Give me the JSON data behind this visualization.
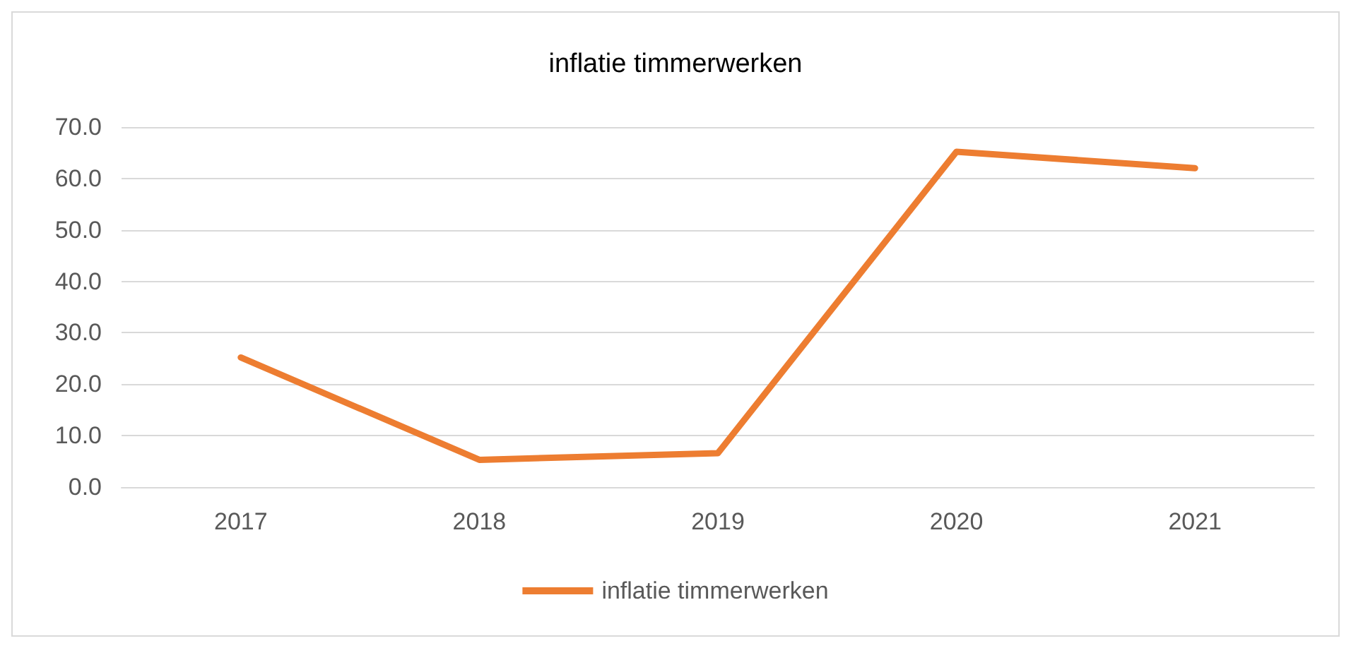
{
  "chart_data": {
    "type": "line",
    "title": "inflatie timmerwerken",
    "categories": [
      "2017",
      "2018",
      "2019",
      "2020",
      "2021"
    ],
    "series": [
      {
        "name": "inflatie timmerwerken",
        "color": "#ed7d31",
        "values": [
          25.2,
          5.3,
          6.6,
          65.2,
          62.0
        ]
      }
    ],
    "ylim": [
      0,
      70
    ],
    "yticks": [
      {
        "value": 0,
        "label": "0.0"
      },
      {
        "value": 10,
        "label": "10.0"
      },
      {
        "value": 20,
        "label": "20.0"
      },
      {
        "value": 30,
        "label": "30.0"
      },
      {
        "value": 40,
        "label": "40.0"
      },
      {
        "value": 50,
        "label": "50.0"
      },
      {
        "value": 60,
        "label": "60.0"
      },
      {
        "value": 70,
        "label": "70.0"
      }
    ],
    "grid": "y",
    "legend": "bottom",
    "marker": "none",
    "line_style": "solid"
  }
}
